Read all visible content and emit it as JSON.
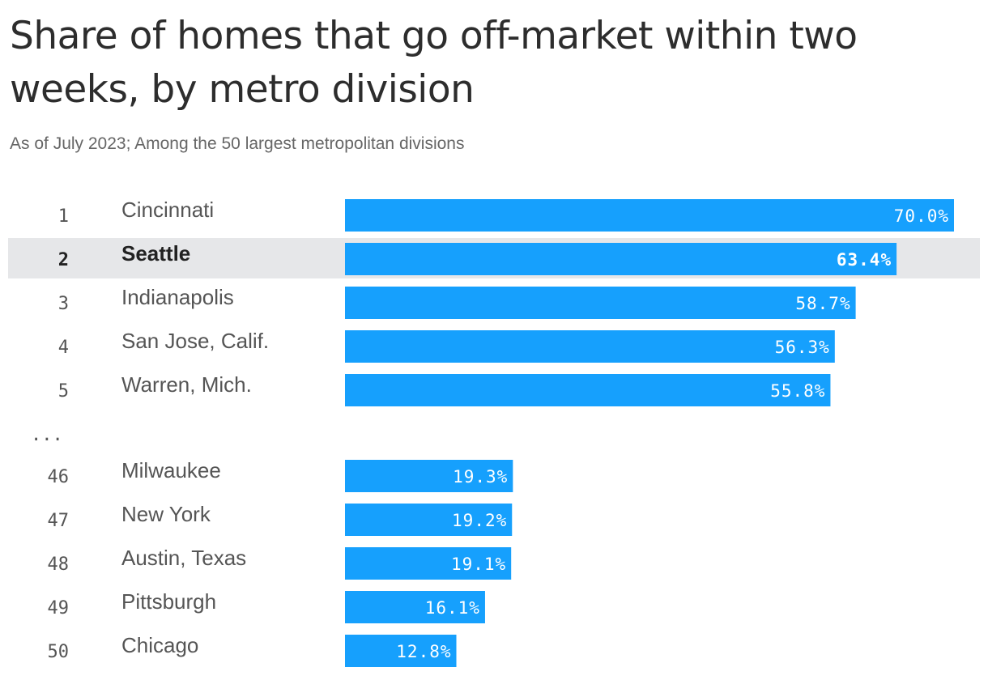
{
  "chart_data": {
    "type": "bar",
    "orientation": "horizontal",
    "title": "Share of homes that go off-market within two weeks, by metro division",
    "subtitle": "As of July 2023; Among the 50 largest metropolitan divisions",
    "gap_marker": "...",
    "xlim": [
      0,
      70
    ],
    "bar_color": "#16a0fd",
    "highlight_color": "#e6e7e9",
    "rows": [
      {
        "rank": "1",
        "name": "Cincinnati",
        "value": 70.0,
        "label": "70.0%",
        "highlight": false
      },
      {
        "rank": "2",
        "name": "Seattle",
        "value": 63.4,
        "label": "63.4%",
        "highlight": true
      },
      {
        "rank": "3",
        "name": "Indianapolis",
        "value": 58.7,
        "label": "58.7%",
        "highlight": false
      },
      {
        "rank": "4",
        "name": "San Jose, Calif.",
        "value": 56.3,
        "label": "56.3%",
        "highlight": false
      },
      {
        "rank": "5",
        "name": "Warren, Mich.",
        "value": 55.8,
        "label": "55.8%",
        "highlight": false
      },
      {
        "rank": "46",
        "name": "Milwaukee",
        "value": 19.3,
        "label": "19.3%",
        "highlight": false
      },
      {
        "rank": "47",
        "name": "New York",
        "value": 19.2,
        "label": "19.2%",
        "highlight": false
      },
      {
        "rank": "48",
        "name": "Austin, Texas",
        "value": 19.1,
        "label": "19.1%",
        "highlight": false
      },
      {
        "rank": "49",
        "name": "Pittsburgh",
        "value": 16.1,
        "label": "16.1%",
        "highlight": false
      },
      {
        "rank": "50",
        "name": "Chicago",
        "value": 12.8,
        "label": "12.8%",
        "highlight": false
      }
    ]
  }
}
